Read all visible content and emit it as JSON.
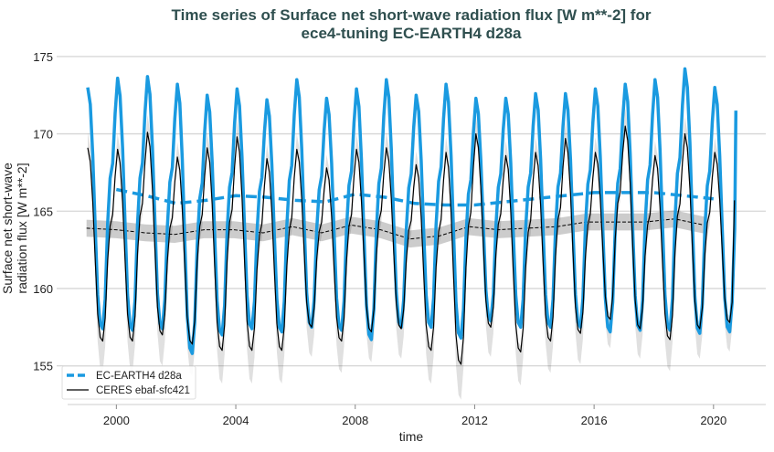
{
  "chart_data": {
    "type": "line",
    "title": [
      "Time series of Surface net short-wave radiation flux [W m**-2] for",
      "ece4-tuning EC-EARTH4 d28a"
    ],
    "xlabel": "time",
    "ylabel": [
      "Surface net short-wave",
      "radiation flux [W m**-2]"
    ],
    "xlim": [
      1998.0,
      2021.75
    ],
    "ylim": [
      152.5,
      175.7
    ],
    "xticks": [
      2000,
      2004,
      2008,
      2012,
      2016,
      2020
    ],
    "yticks": [
      155,
      160,
      165,
      170,
      175
    ],
    "grid": "horizontal",
    "legend_placement": "lower-left",
    "years": [
      1999,
      2000,
      2001,
      2002,
      2003,
      2004,
      2005,
      2006,
      2007,
      2008,
      2009,
      2010,
      2011,
      2012,
      2013,
      2014,
      2015,
      2016,
      2017,
      2018,
      2019,
      2020
    ],
    "series": [
      {
        "name": "EC-EARTH4 d28a",
        "color": "#1a9ae0",
        "style": "solid thick, annual mean dashed",
        "monthly_peaks": [
          173.0,
          173.6,
          173.7,
          173.2,
          172.5,
          172.9,
          172.2,
          173.5,
          172.3,
          172.9,
          173.5,
          172.5,
          173.2,
          172.3,
          172.3,
          172.6,
          172.6,
          172.9,
          173.2,
          173.5,
          174.2,
          173.0
        ],
        "monthly_troughs": [
          157.4,
          157.3,
          157.4,
          155.8,
          157.0,
          157.4,
          157.2,
          157.5,
          157.3,
          156.7,
          157.5,
          157.5,
          156.8,
          157.9,
          157.5,
          157.5,
          157.5,
          157.2,
          157.3,
          157.3,
          157.1,
          157.2
        ],
        "end": {
          "time": 2020.75,
          "value": 171.5
        },
        "annual_mean_years": [
          2000,
          2001,
          2002,
          2003,
          2004,
          2005,
          2006,
          2007,
          2008,
          2009,
          2010,
          2011,
          2012,
          2013,
          2014,
          2015,
          2016,
          2017,
          2018,
          2019,
          2020
        ],
        "annual_mean": [
          166.4,
          166.0,
          165.5,
          165.7,
          166.0,
          165.9,
          165.7,
          165.6,
          166.1,
          165.9,
          165.5,
          165.4,
          165.4,
          165.6,
          165.8,
          166.0,
          166.2,
          166.2,
          166.2,
          166.0,
          165.8
        ]
      },
      {
        "name": "CERES ebaf-sfc421",
        "color": "#000000",
        "style": "solid thin with grey spread, annual mean dashed with grey band",
        "monthly_peaks": [
          169.1,
          169.0,
          170.1,
          168.5,
          169.1,
          169.8,
          168.4,
          169.0,
          167.8,
          169.0,
          169.1,
          168.0,
          168.8,
          170.0,
          168.6,
          168.8,
          169.7,
          168.8,
          170.5,
          168.6,
          170.0,
          168.8
        ],
        "monthly_troughs": [
          156.6,
          156.6,
          157.0,
          156.4,
          156.0,
          156.0,
          156.0,
          157.5,
          156.6,
          157.2,
          157.4,
          156.0,
          155.1,
          157.5,
          155.9,
          156.6,
          157.1,
          158.0,
          157.4,
          156.7,
          157.4,
          157.8
        ],
        "end": {
          "time": 2020.7,
          "value": 165.7
        },
        "annual_mean_years": [
          1999,
          2000,
          2001,
          2002,
          2003,
          2004,
          2005,
          2006,
          2007,
          2008,
          2009,
          2010,
          2011,
          2012,
          2013,
          2014,
          2015,
          2016,
          2017,
          2018,
          2019,
          2020
        ],
        "annual_mean": [
          163.9,
          163.8,
          163.6,
          163.5,
          163.8,
          163.8,
          163.6,
          164.0,
          163.6,
          164.1,
          163.8,
          163.2,
          163.4,
          164.0,
          163.8,
          163.9,
          164.0,
          164.3,
          164.3,
          164.3,
          164.5,
          164.1
        ]
      }
    ]
  }
}
